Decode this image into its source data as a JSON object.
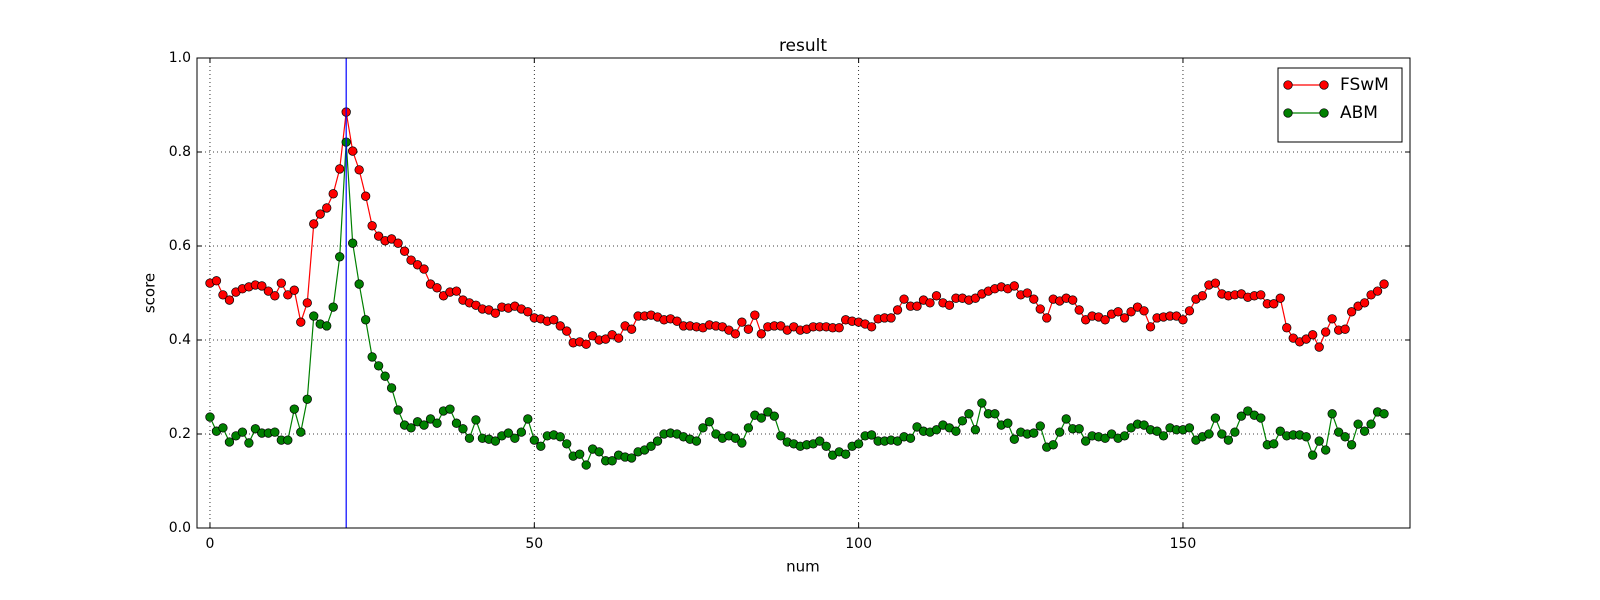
{
  "chart_data": {
    "type": "line",
    "title": "result",
    "x_label": "num",
    "y_label": "score",
    "x": [
      0,
      1,
      2,
      3,
      4,
      5,
      6,
      7,
      8,
      9,
      10,
      11,
      12,
      13,
      14,
      15,
      16,
      17,
      18,
      19,
      20,
      21,
      22,
      23,
      24,
      25,
      26,
      27,
      28,
      29,
      30,
      31,
      32,
      33,
      34,
      35,
      36,
      37,
      38,
      39,
      40,
      41,
      42,
      43,
      44,
      45,
      46,
      47,
      48,
      49,
      50,
      51,
      52,
      53,
      54,
      55,
      56,
      57,
      58,
      59,
      60,
      61,
      62,
      63,
      64,
      65,
      66,
      67,
      68,
      69,
      70,
      71,
      72,
      73,
      74,
      75,
      76,
      77,
      78,
      79,
      80,
      81,
      82,
      83,
      84,
      85,
      86,
      87,
      88,
      89,
      90,
      91,
      92,
      93,
      94,
      95,
      96,
      97,
      98,
      99,
      100,
      101,
      102,
      103,
      104,
      105,
      106,
      107,
      108,
      109,
      110,
      111,
      112,
      113,
      114,
      115,
      116,
      117,
      118,
      119,
      120,
      121,
      122,
      123,
      124,
      125,
      126,
      127,
      128,
      129,
      130,
      131,
      132,
      133,
      134,
      135,
      136,
      137,
      138,
      139,
      140,
      141,
      142,
      143,
      144,
      145,
      146,
      147,
      148,
      149,
      150,
      151,
      152,
      153,
      154,
      155,
      156,
      157,
      158,
      159,
      160,
      161,
      162,
      163,
      164,
      165,
      166,
      167,
      168,
      169,
      170,
      171,
      172,
      173,
      174,
      175,
      176,
      177,
      178,
      179,
      180,
      181
    ],
    "series": [
      {
        "name": "FSwM",
        "color": "#ff0000",
        "values": [
          0.521,
          0.526,
          0.496,
          0.485,
          0.502,
          0.509,
          0.513,
          0.517,
          0.515,
          0.504,
          0.494,
          0.521,
          0.496,
          0.506,
          0.438,
          0.479,
          0.647,
          0.668,
          0.681,
          0.711,
          0.764,
          0.885,
          0.802,
          0.762,
          0.706,
          0.643,
          0.621,
          0.611,
          0.615,
          0.606,
          0.589,
          0.57,
          0.56,
          0.551,
          0.519,
          0.511,
          0.494,
          0.502,
          0.504,
          0.485,
          0.479,
          0.474,
          0.466,
          0.464,
          0.457,
          0.47,
          0.468,
          0.472,
          0.466,
          0.46,
          0.447,
          0.445,
          0.44,
          0.443,
          0.43,
          0.419,
          0.394,
          0.396,
          0.391,
          0.409,
          0.4,
          0.402,
          0.411,
          0.404,
          0.43,
          0.423,
          0.451,
          0.451,
          0.453,
          0.449,
          0.443,
          0.445,
          0.44,
          0.43,
          0.43,
          0.428,
          0.426,
          0.432,
          0.43,
          0.428,
          0.421,
          0.413,
          0.438,
          0.423,
          0.453,
          0.413,
          0.428,
          0.43,
          0.43,
          0.421,
          0.428,
          0.421,
          0.423,
          0.428,
          0.428,
          0.428,
          0.426,
          0.426,
          0.443,
          0.44,
          0.438,
          0.434,
          0.428,
          0.445,
          0.447,
          0.447,
          0.464,
          0.487,
          0.472,
          0.472,
          0.485,
          0.479,
          0.494,
          0.479,
          0.474,
          0.489,
          0.489,
          0.485,
          0.489,
          0.498,
          0.504,
          0.509,
          0.513,
          0.509,
          0.515,
          0.496,
          0.5,
          0.487,
          0.466,
          0.447,
          0.487,
          0.483,
          0.489,
          0.485,
          0.464,
          0.443,
          0.451,
          0.449,
          0.443,
          0.455,
          0.46,
          0.447,
          0.46,
          0.47,
          0.462,
          0.428,
          0.447,
          0.449,
          0.451,
          0.451,
          0.443,
          0.462,
          0.487,
          0.494,
          0.517,
          0.521,
          0.498,
          0.494,
          0.496,
          0.498,
          0.491,
          0.494,
          0.496,
          0.477,
          0.477,
          0.489,
          0.426,
          0.404,
          0.396,
          0.402,
          0.411,
          0.385,
          0.417,
          0.445,
          0.421,
          0.423,
          0.46,
          0.472,
          0.479,
          0.496,
          0.504,
          0.519
        ]
      },
      {
        "name": "ABM",
        "color": "#008000",
        "values": [
          0.236,
          0.206,
          0.213,
          0.183,
          0.196,
          0.204,
          0.181,
          0.211,
          0.202,
          0.202,
          0.204,
          0.187,
          0.187,
          0.253,
          0.204,
          0.274,
          0.451,
          0.434,
          0.43,
          0.47,
          0.577,
          0.821,
          0.606,
          0.519,
          0.443,
          0.364,
          0.345,
          0.323,
          0.298,
          0.251,
          0.219,
          0.213,
          0.226,
          0.219,
          0.232,
          0.223,
          0.249,
          0.253,
          0.223,
          0.211,
          0.191,
          0.23,
          0.191,
          0.189,
          0.185,
          0.196,
          0.202,
          0.191,
          0.204,
          0.232,
          0.187,
          0.174,
          0.196,
          0.198,
          0.194,
          0.179,
          0.153,
          0.157,
          0.134,
          0.168,
          0.162,
          0.143,
          0.143,
          0.155,
          0.151,
          0.149,
          0.162,
          0.166,
          0.174,
          0.185,
          0.2,
          0.202,
          0.2,
          0.194,
          0.189,
          0.185,
          0.213,
          0.226,
          0.2,
          0.191,
          0.196,
          0.191,
          0.181,
          0.213,
          0.24,
          0.234,
          0.247,
          0.238,
          0.196,
          0.183,
          0.179,
          0.174,
          0.177,
          0.179,
          0.185,
          0.174,
          0.155,
          0.162,
          0.157,
          0.174,
          0.179,
          0.196,
          0.198,
          0.185,
          0.185,
          0.187,
          0.185,
          0.194,
          0.191,
          0.215,
          0.206,
          0.204,
          0.209,
          0.219,
          0.213,
          0.206,
          0.228,
          0.243,
          0.209,
          0.266,
          0.243,
          0.243,
          0.219,
          0.223,
          0.189,
          0.204,
          0.2,
          0.202,
          0.217,
          0.172,
          0.177,
          0.204,
          0.232,
          0.211,
          0.211,
          0.185,
          0.196,
          0.194,
          0.191,
          0.2,
          0.191,
          0.196,
          0.213,
          0.221,
          0.219,
          0.209,
          0.206,
          0.196,
          0.213,
          0.209,
          0.209,
          0.213,
          0.187,
          0.194,
          0.2,
          0.234,
          0.2,
          0.187,
          0.204,
          0.238,
          0.249,
          0.24,
          0.234,
          0.177,
          0.179,
          0.206,
          0.196,
          0.198,
          0.198,
          0.194,
          0.155,
          0.185,
          0.166,
          0.243,
          0.204,
          0.194,
          0.177,
          0.221,
          0.206,
          0.221,
          0.247,
          0.243
        ]
      }
    ],
    "vertical_line": {
      "x": 21,
      "color": "#0000ff"
    },
    "xlim": [
      -2,
      185
    ],
    "xticks": [
      0,
      50,
      100,
      150
    ],
    "ylim": [
      0,
      1
    ],
    "yticks": [
      {
        "value": 0,
        "label": "0.0"
      },
      0.2,
      0.4,
      0.6,
      0.8,
      {
        "value": 1,
        "label": "1.0"
      }
    ],
    "grid": true,
    "legend": "upper right"
  }
}
